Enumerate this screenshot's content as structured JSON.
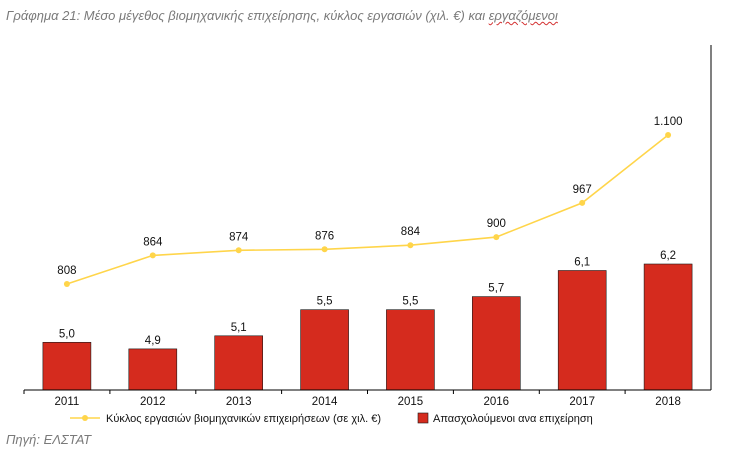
{
  "title_main": "Γράφημα 21: Μέσο μέγεθος βιομηχανικής επιχείρησης, κύκλος εργασιών (χιλ. €) και ",
  "title_underlined": "εργαζόμενοι",
  "source": "Πηγή: ΕΛΣΤΑΤ",
  "colors": {
    "bar": "#d52b1e",
    "bar_stroke": "#1a1a1a",
    "line": "#ffd54a",
    "axis": "#000000"
  },
  "chart_data": {
    "type": "bar",
    "categories": [
      "2011",
      "2012",
      "2013",
      "2014",
      "2015",
      "2016",
      "2017",
      "2018"
    ],
    "series": [
      {
        "name": "Απασχολούμενοι ανα επιχείρηση",
        "type": "bar",
        "values": [
          5.0,
          4.9,
          5.1,
          5.5,
          5.5,
          5.7,
          6.1,
          6.2
        ],
        "labels": [
          "5,0",
          "4,9",
          "5,1",
          "5,5",
          "5,5",
          "5,7",
          "6,1",
          "6,2"
        ]
      },
      {
        "name": "Κύκλος εργασιών βιομηχανικών επιχειρήσεων (σε χιλ. €)",
        "type": "line",
        "values": [
          808,
          864,
          874,
          876,
          884,
          900,
          967,
          1100
        ],
        "labels": [
          "808",
          "864",
          "874",
          "876",
          "884",
          "900",
          "967",
          "1.100"
        ]
      }
    ],
    "legend_position": "bottom",
    "grid": false
  }
}
